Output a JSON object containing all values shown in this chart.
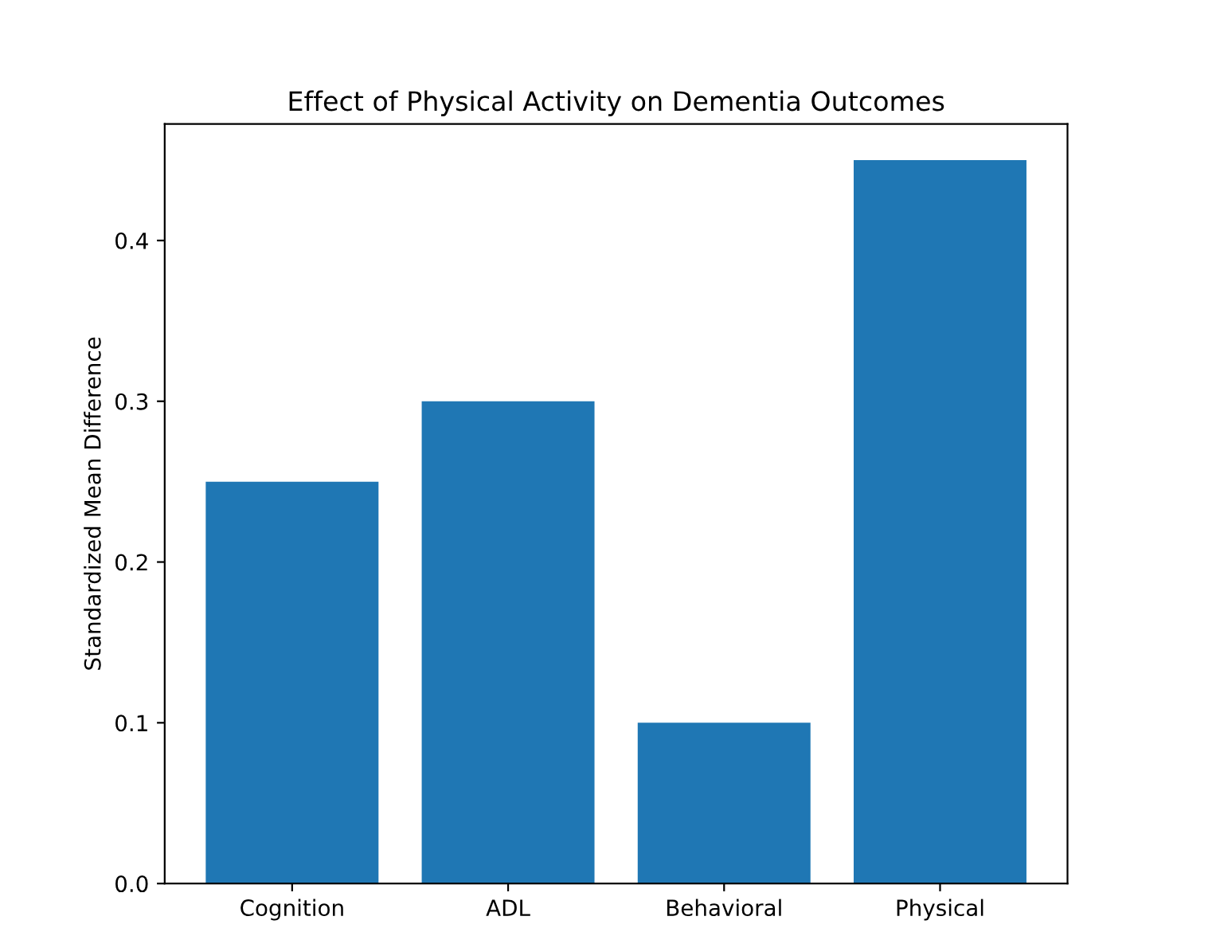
{
  "chart_data": {
    "type": "bar",
    "title": "Effect of Physical Activity on Dementia Outcomes",
    "ylabel": "Standardized Mean Difference",
    "categories": [
      "Cognition",
      "ADL",
      "Behavioral",
      "Physical"
    ],
    "values": [
      0.25,
      0.3,
      0.1,
      0.45
    ],
    "color": "#1f77b4",
    "ylim": [
      0,
      0.4725
    ],
    "yticks": [
      {
        "value": 0,
        "label": "0.0"
      },
      0.1,
      0.2,
      0.3,
      0.4
    ],
    "grid": false
  }
}
